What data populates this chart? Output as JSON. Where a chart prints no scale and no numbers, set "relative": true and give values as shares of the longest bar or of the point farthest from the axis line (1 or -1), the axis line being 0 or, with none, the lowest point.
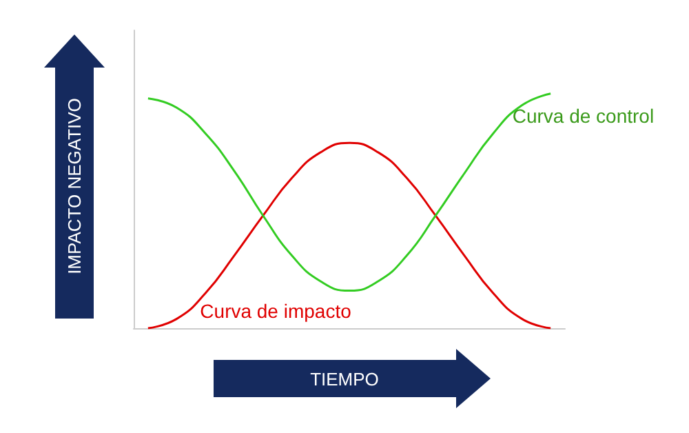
{
  "chart_data": {
    "type": "line",
    "relative": true,
    "xlabel": "TIEMPO",
    "ylabel": "IMPACTO NEGATIVO",
    "categories": [
      null,
      null,
      null,
      null,
      null,
      null,
      null,
      null,
      null,
      null,
      null,
      null,
      null,
      null,
      null
    ],
    "series": [
      {
        "name": "Curva de impacto",
        "color": "#e00000",
        "values": [
          0,
          0.04,
          0.15,
          0.31,
          0.48,
          0.64,
          0.75,
          0.79,
          0.75,
          0.64,
          0.48,
          0.31,
          0.15,
          0.04,
          0
        ]
      },
      {
        "name": "Curva de control",
        "color": "#33cc22",
        "values": [
          0.98,
          0.94,
          0.83,
          0.67,
          0.48,
          0.31,
          0.2,
          0.16,
          0.2,
          0.31,
          0.48,
          0.66,
          0.83,
          0.95,
          1
        ]
      }
    ],
    "marker": "none",
    "line_style": "solid",
    "grid": false
  }
}
